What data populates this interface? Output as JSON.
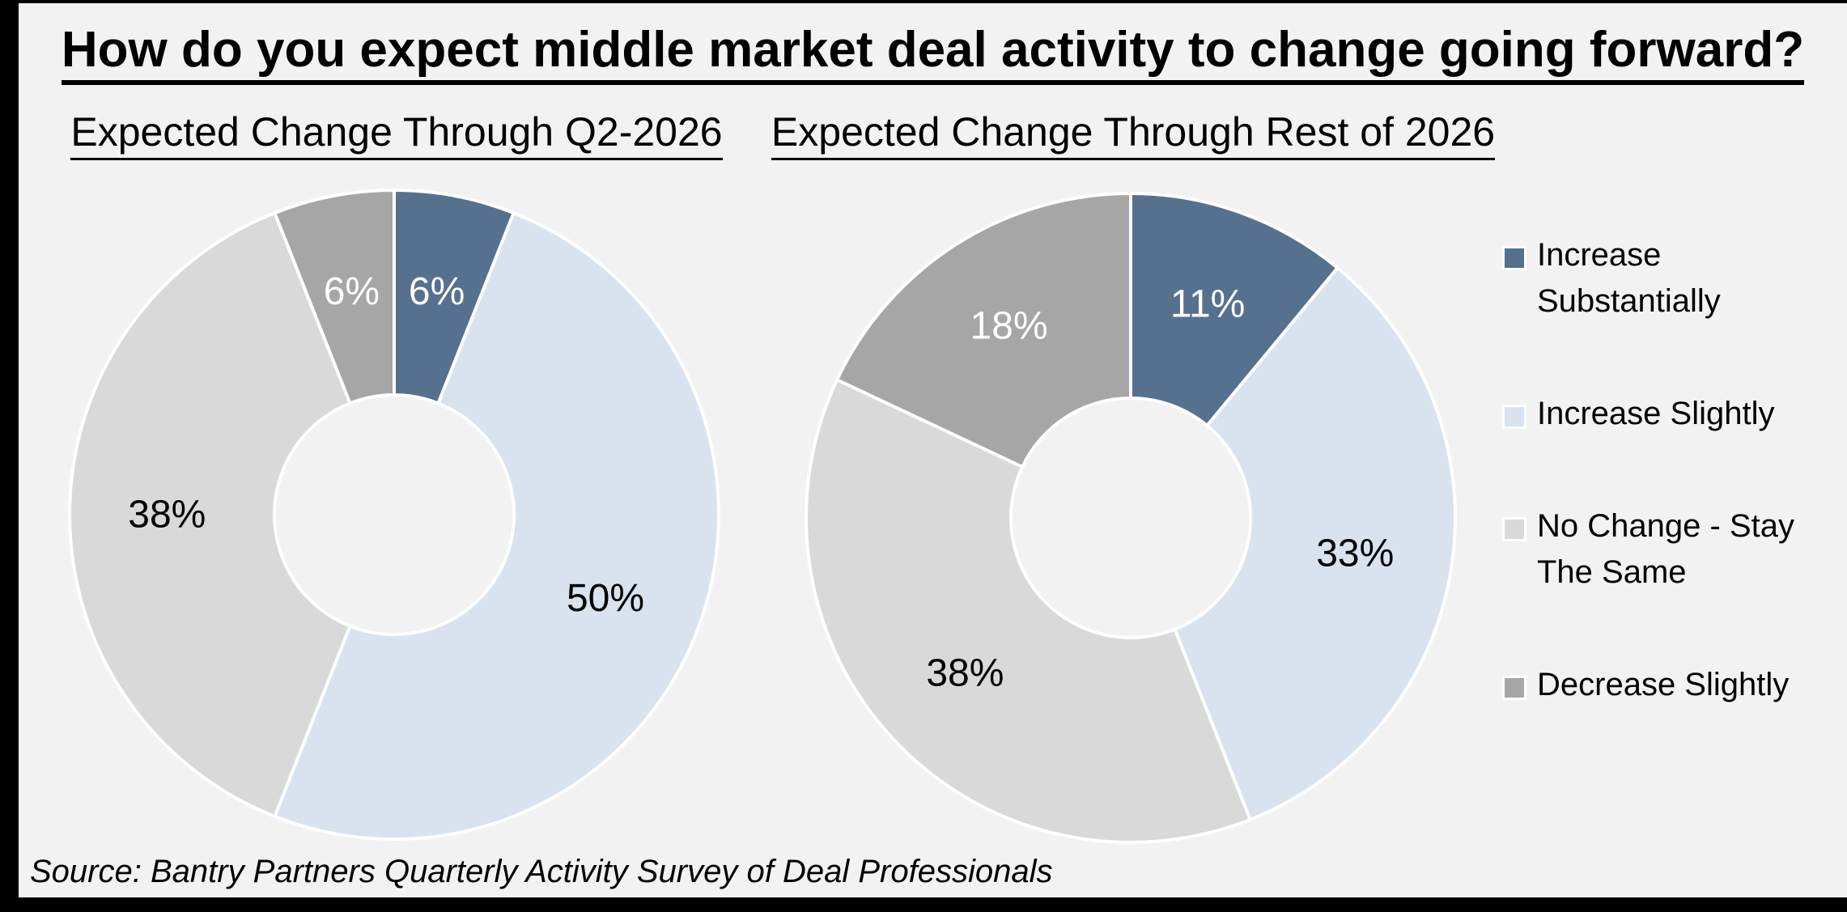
{
  "frame": {
    "border_color": "#000000",
    "slide_background": "#F2F2F2"
  },
  "title": "How do you expect middle market deal activity to change going forward?",
  "source": "Source: Bantry Partners Quarterly Activity Survey of Deal Professionals",
  "palette": {
    "increase_substantially": "#56718D",
    "increase_slightly": "#D8E3EF",
    "no_change": "#D9D9D9",
    "decrease_slightly": "#A6A6A6",
    "slice_border": "#FFFFFF"
  },
  "legend": {
    "position": "right",
    "items": [
      {
        "label": "Increase Substantially",
        "color": "#56718D"
      },
      {
        "label": "Increase Slightly",
        "color": "#D8E3EF"
      },
      {
        "label": "No Change - Stay The Same",
        "color": "#D9D9D9"
      },
      {
        "label": "Decrease Slightly",
        "color": "#A6A6A6"
      }
    ]
  },
  "chart_data": [
    {
      "type": "pie",
      "subtype": "donut",
      "title": "Expected Change Through Q2-2026",
      "categories": [
        "Increase Substantially",
        "Increase Slightly",
        "No Change - Stay The Same",
        "Decrease Slightly"
      ],
      "values": [
        6,
        50,
        38,
        6
      ],
      "data_labels": [
        "6%",
        "50%",
        "38%",
        "6%"
      ],
      "unit": "%",
      "colors": [
        "#56718D",
        "#D8E3EF",
        "#D9D9D9",
        "#A6A6A6"
      ],
      "label_colors": [
        "#FFFFFF",
        "#000000",
        "#000000",
        "#FFFFFF"
      ],
      "start_angle_deg": 0,
      "direction": "clockwise",
      "donut_hole_ratio": 0.37,
      "grid": false
    },
    {
      "type": "pie",
      "subtype": "donut",
      "title": "Expected Change Through Rest of 2026",
      "categories": [
        "Increase Substantially",
        "Increase Slightly",
        "No Change - Stay The Same",
        "Decrease Slightly"
      ],
      "values": [
        11,
        33,
        38,
        18
      ],
      "data_labels": [
        "11%",
        "33%",
        "38%",
        "18%"
      ],
      "unit": "%",
      "colors": [
        "#56718D",
        "#D8E3EF",
        "#D9D9D9",
        "#A6A6A6"
      ],
      "label_colors": [
        "#FFFFFF",
        "#000000",
        "#000000",
        "#FFFFFF"
      ],
      "start_angle_deg": 0,
      "direction": "clockwise",
      "donut_hole_ratio": 0.37,
      "grid": false
    }
  ]
}
